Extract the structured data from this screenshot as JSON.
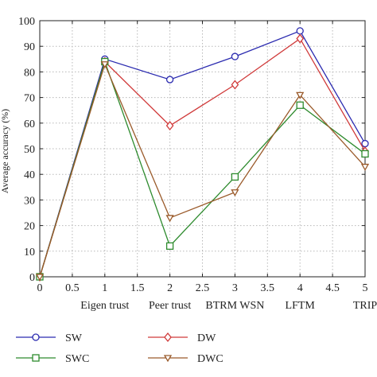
{
  "chart_data": {
    "type": "line",
    "xlabel": "",
    "ylabel": "Average accuracy (%)",
    "xlim": [
      0,
      5
    ],
    "ylim": [
      0,
      100
    ],
    "x_ticks": [
      "0",
      "0.5",
      "1",
      "1.5",
      "2",
      "2.5",
      "3",
      "3.5",
      "4",
      "4.5",
      "5"
    ],
    "y_ticks": [
      "0",
      "10",
      "20",
      "30",
      "40",
      "50",
      "60",
      "70",
      "80",
      "90",
      "100"
    ],
    "categories": [
      {
        "x": 1,
        "label": "Eigen trust"
      },
      {
        "x": 2,
        "label": "Peer trust"
      },
      {
        "x": 3,
        "label": "BTRM WSN"
      },
      {
        "x": 4,
        "label": "LFTM"
      },
      {
        "x": 5,
        "label": "TRIP"
      }
    ],
    "x": [
      0,
      1,
      2,
      3,
      4,
      5
    ],
    "series": [
      {
        "name": "SW",
        "color": "#2b2bb0",
        "marker": "circle",
        "values": [
          0,
          85,
          77,
          86,
          96,
          52
        ]
      },
      {
        "name": "DW",
        "color": "#d03a3a",
        "marker": "diamond",
        "values": [
          0,
          84,
          59,
          75,
          93,
          49
        ]
      },
      {
        "name": "SWC",
        "color": "#2e8b2e",
        "marker": "square",
        "values": [
          0,
          84,
          12,
          39,
          67,
          48
        ]
      },
      {
        "name": "DWC",
        "color": "#9a5a2a",
        "marker": "triangle-down",
        "values": [
          0,
          83,
          23,
          33,
          71,
          43
        ]
      }
    ],
    "grid": true,
    "grid_style": "dotted",
    "legend_position": "bottom"
  }
}
